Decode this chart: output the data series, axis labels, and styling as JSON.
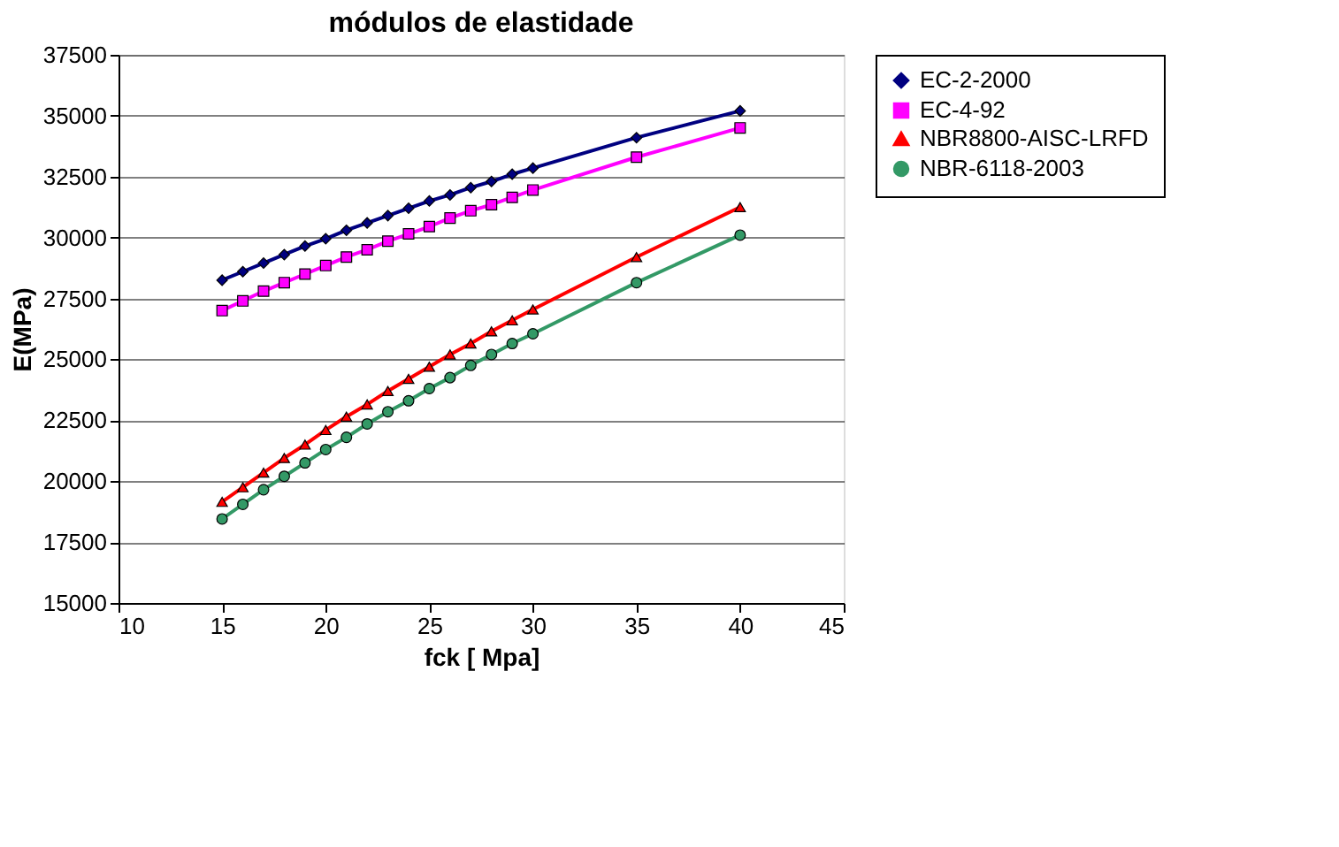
{
  "chart_data": {
    "type": "line",
    "title": "módulos de elastidade",
    "xlabel": "fck [ Mpa]",
    "ylabel": "E(MPa)",
    "x": [
      15,
      16,
      17,
      18,
      19,
      20,
      21,
      22,
      23,
      24,
      25,
      26,
      27,
      28,
      29,
      30,
      35,
      40
    ],
    "xlim": [
      10,
      45
    ],
    "xticks": [
      10,
      15,
      20,
      25,
      30,
      35,
      40,
      45
    ],
    "ylim": [
      15000,
      37500
    ],
    "yticks": [
      15000,
      17500,
      20000,
      22500,
      25000,
      27500,
      30000,
      32500,
      35000,
      37500
    ],
    "grid": "y",
    "legend": "right",
    "line_style": "solid",
    "series": [
      {
        "name": "EC-2-2000",
        "color": "#000080",
        "marker": "diamond",
        "values": [
          28250,
          28600,
          28950,
          29300,
          29650,
          29950,
          30300,
          30600,
          30900,
          31200,
          31500,
          31750,
          32050,
          32300,
          32600,
          32850,
          34100,
          35200
        ]
      },
      {
        "name": "EC-4-92",
        "color": "#ff00ff",
        "marker": "square",
        "values": [
          27000,
          27400,
          27800,
          28150,
          28500,
          28850,
          29200,
          29500,
          29850,
          30150,
          30450,
          30800,
          31100,
          31350,
          31650,
          31950,
          33300,
          34500
        ]
      },
      {
        "name": "NBR8800-AISC-LRFD",
        "color": "#ff0000",
        "marker": "triangle",
        "values": [
          19150,
          19750,
          20350,
          20950,
          21500,
          22100,
          22650,
          23150,
          23700,
          24200,
          24700,
          25200,
          25650,
          26150,
          26600,
          27050,
          29200,
          31250
        ]
      },
      {
        "name": "NBR-6118-2003",
        "color": "#339966",
        "marker": "circle",
        "values": [
          18450,
          19050,
          19650,
          20200,
          20750,
          21300,
          21800,
          22350,
          22850,
          23300,
          23800,
          24250,
          24750,
          25200,
          25650,
          26050,
          28150,
          30100
        ]
      }
    ]
  }
}
